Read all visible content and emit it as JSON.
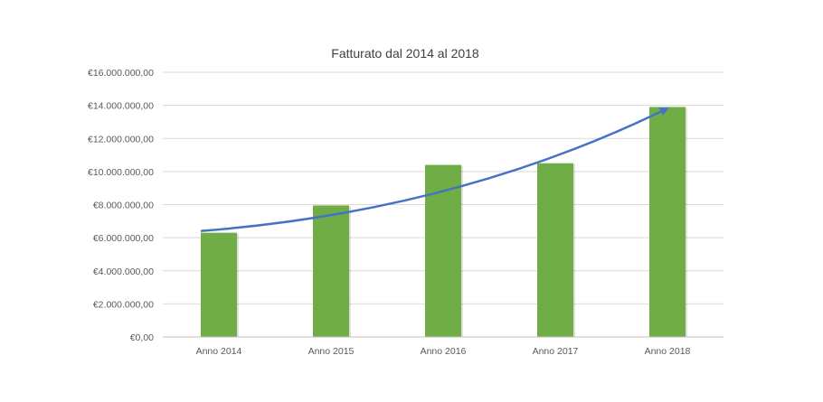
{
  "chart_data": {
    "type": "bar",
    "title": "Fatturato dal 2014 al 2018",
    "categories": [
      "Anno 2014",
      "Anno 2015",
      "Anno 2016",
      "Anno 2017",
      "Anno 2018"
    ],
    "values": [
      6300000,
      7950000,
      10400000,
      10500000,
      13900000
    ],
    "ylim": [
      0,
      16000000
    ],
    "y_ticks": [
      "€0,00",
      "€2.000.000,00",
      "€4.000.000,00",
      "€6.000.000,00",
      "€8.000.000,00",
      "€10.000.000,00",
      "€12.000.000,00",
      "€14.000.000,00",
      "€16.000.000,00"
    ],
    "grid": true,
    "legend": "none",
    "bar_color": "#70ad47",
    "trend_arrow_color": "#4472c4"
  }
}
